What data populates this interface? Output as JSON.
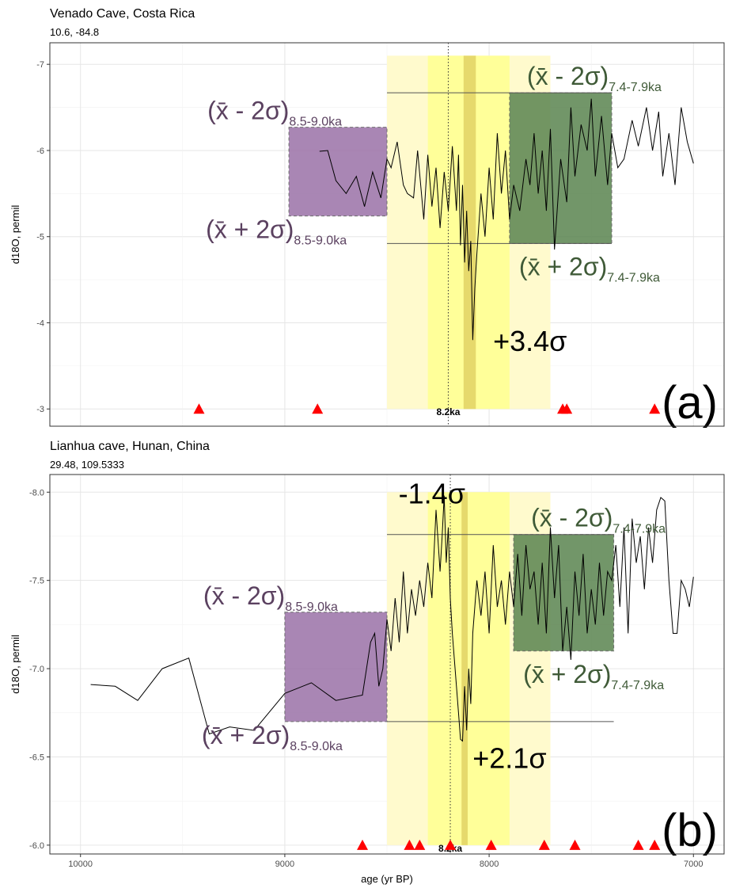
{
  "chart_data": [
    {
      "type": "line",
      "title": "Venado Cave, Costa Rica",
      "subtitle": "10.6, -84.8",
      "panel_label": "(a)",
      "xlabel": "age (yr BP)",
      "ylabel": "d18O, permil",
      "xlim": [
        10150,
        6850
      ],
      "ylim": [
        -2.8,
        -7.25
      ],
      "y_reversed": true,
      "yticks": [
        -7,
        -6,
        -5,
        -4,
        -3
      ],
      "ytick_labels": [
        "-7",
        "-6",
        "-5",
        "-4",
        "-3"
      ],
      "series": [
        {
          "name": "d18O",
          "x": [
            8830,
            8790,
            8750,
            8700,
            8650,
            8610,
            8570,
            8530,
            8500,
            8480,
            8450,
            8420,
            8400,
            8370,
            8350,
            8320,
            8300,
            8280,
            8260,
            8240,
            8220,
            8200,
            8180,
            8160,
            8150,
            8140,
            8130,
            8120,
            8110,
            8100,
            8090,
            8080,
            8070,
            8060,
            8040,
            8020,
            8000,
            7980,
            7960,
            7940,
            7920,
            7900,
            7880,
            7850,
            7820,
            7800,
            7780,
            7760,
            7740,
            7720,
            7700,
            7680,
            7650,
            7620,
            7600,
            7580,
            7550,
            7520,
            7500,
            7480,
            7450,
            7420,
            7400,
            7370,
            7340,
            7300,
            7270,
            7230,
            7200,
            7170,
            7150,
            7120,
            7090,
            7060,
            7030,
            7000
          ],
          "values": [
            -5.99,
            -6.0,
            -5.65,
            -5.5,
            -5.7,
            -5.35,
            -5.75,
            -5.45,
            -5.9,
            -5.8,
            -6.1,
            -5.6,
            -5.5,
            -5.45,
            -6.0,
            -5.2,
            -5.95,
            -5.35,
            -5.8,
            -5.1,
            -5.75,
            -5.3,
            -6.05,
            -5.3,
            -5.95,
            -4.9,
            -5.6,
            -4.7,
            -5.3,
            -4.6,
            -4.95,
            -3.8,
            -4.4,
            -4.8,
            -5.5,
            -5.0,
            -5.8,
            -5.2,
            -6.2,
            -5.5,
            -6.0,
            -5.2,
            -5.6,
            -5.3,
            -5.9,
            -5.6,
            -6.2,
            -5.5,
            -6.0,
            -5.3,
            -6.25,
            -4.85,
            -5.9,
            -5.4,
            -6.5,
            -5.7,
            -6.3,
            -6.0,
            -6.6,
            -5.7,
            -6.4,
            -5.6,
            -6.2,
            -5.8,
            -5.9,
            -6.35,
            -6.05,
            -6.5,
            -6.0,
            -6.45,
            -5.7,
            -6.2,
            -5.6,
            -6.5,
            -6.1,
            -5.85
          ]
        }
      ],
      "event_bands": [
        {
          "x_range": [
            8500,
            7700
          ],
          "color": "#fffacd"
        },
        {
          "x_range": [
            8300,
            7900
          ],
          "color": "#ffff99"
        },
        {
          "x_range": [
            8125,
            8065
          ],
          "color": "#e0d060"
        }
      ],
      "event_line": {
        "x": 8200,
        "label": "8.2ka"
      },
      "reference_boxes": [
        {
          "x_range": [
            8980,
            8500
          ],
          "y_range": [
            -5.24,
            -6.27
          ],
          "color": "#9b72a8",
          "label_upper": "(x̄ - 2σ)",
          "label_upper_sub": "8.5-9.0ka",
          "label_lower": "(x̄ + 2σ)",
          "label_lower_sub": "8.5-9.0ka"
        },
        {
          "x_range": [
            7900,
            7400
          ],
          "y_range": [
            -4.92,
            -6.67
          ],
          "color": "#5a8450",
          "label_upper": "(x̄ - 2σ)",
          "label_upper_sub": "7.4-7.9ka",
          "label_lower": "(x̄ + 2σ)",
          "label_lower_sub": "7.4-7.9ka"
        }
      ],
      "reference_lines": [
        {
          "y": -6.67,
          "x_range": [
            8500,
            7400
          ]
        },
        {
          "y": -4.92,
          "x_range": [
            8500,
            7400
          ]
        }
      ],
      "annotations": [
        {
          "text": "+3.4σ",
          "x": 7800,
          "y": -3.8
        }
      ],
      "triangle_markers_x": [
        9420,
        8840,
        7640,
        7620,
        7190
      ],
      "triangle_marker_y": -3.0
    },
    {
      "type": "line",
      "title": "Lianhua cave, Hunan, China",
      "subtitle": "29.48, 109.5333",
      "panel_label": "(b)",
      "xlabel": "age (yr BP)",
      "ylabel": "d18O, permil",
      "xlim": [
        10150,
        6850
      ],
      "ylim": [
        -5.95,
        -8.1
      ],
      "y_reversed": true,
      "yticks": [
        -8.0,
        -7.5,
        -7.0,
        -6.5,
        -6.0
      ],
      "ytick_labels": [
        "-8.0",
        "-7.5",
        "-7.0",
        "-6.5",
        "-6.0"
      ],
      "xticks": [
        10000,
        9000,
        8000,
        7000
      ],
      "xtick_labels": [
        "10000",
        "9000",
        "8000",
        "7000"
      ],
      "series": [
        {
          "name": "d18O",
          "x": [
            9950,
            9830,
            9720,
            9600,
            9470,
            9370,
            9270,
            9150,
            9000,
            8870,
            8750,
            8620,
            8580,
            8560,
            8540,
            8520,
            8500,
            8480,
            8460,
            8440,
            8420,
            8400,
            8380,
            8360,
            8340,
            8320,
            8300,
            8280,
            8260,
            8240,
            8230,
            8220,
            8210,
            8200,
            8190,
            8180,
            8170,
            8160,
            8150,
            8140,
            8130,
            8120,
            8110,
            8100,
            8090,
            8080,
            8060,
            8040,
            8020,
            8000,
            7980,
            7960,
            7940,
            7920,
            7900,
            7880,
            7860,
            7840,
            7820,
            7800,
            7780,
            7760,
            7740,
            7720,
            7700,
            7680,
            7660,
            7640,
            7620,
            7600,
            7580,
            7560,
            7540,
            7520,
            7500,
            7480,
            7460,
            7440,
            7420,
            7400,
            7380,
            7360,
            7340,
            7320,
            7300,
            7280,
            7260,
            7240,
            7220,
            7200,
            7180,
            7160,
            7140,
            7120,
            7100,
            7080,
            7060,
            7040,
            7020,
            7000
          ],
          "values": [
            -6.91,
            -6.9,
            -6.82,
            -7.0,
            -7.06,
            -6.63,
            -6.67,
            -6.65,
            -6.86,
            -6.92,
            -6.82,
            -6.85,
            -7.15,
            -7.2,
            -6.9,
            -7.0,
            -7.28,
            -7.1,
            -7.4,
            -7.15,
            -7.55,
            -7.2,
            -7.45,
            -7.3,
            -7.5,
            -7.35,
            -7.6,
            -7.4,
            -7.9,
            -7.55,
            -7.75,
            -7.98,
            -7.6,
            -7.8,
            -7.4,
            -7.2,
            -7.05,
            -6.9,
            -6.75,
            -6.6,
            -6.59,
            -6.9,
            -6.65,
            -7.0,
            -6.8,
            -7.2,
            -7.5,
            -7.3,
            -7.55,
            -7.2,
            -7.7,
            -7.35,
            -7.5,
            -7.25,
            -7.55,
            -7.35,
            -7.65,
            -7.3,
            -7.7,
            -7.45,
            -7.55,
            -7.25,
            -7.6,
            -7.2,
            -7.8,
            -7.4,
            -7.7,
            -7.1,
            -7.35,
            -7.05,
            -7.55,
            -7.3,
            -7.65,
            -7.2,
            -7.45,
            -7.25,
            -7.6,
            -7.3,
            -7.55,
            -7.5,
            -7.7,
            -7.35,
            -7.8,
            -7.2,
            -7.85,
            -7.6,
            -7.75,
            -7.45,
            -7.8,
            -7.6,
            -7.9,
            -7.97,
            -7.95,
            -7.5,
            -7.2,
            -7.2,
            -7.5,
            -7.45,
            -7.35,
            -7.52
          ]
        }
      ],
      "event_bands": [
        {
          "x_range": [
            8500,
            7700
          ],
          "color": "#fffacd"
        },
        {
          "x_range": [
            8300,
            7900
          ],
          "color": "#ffff99"
        },
        {
          "x_range": [
            8135,
            8105
          ],
          "color": "#e0d060"
        }
      ],
      "event_line": {
        "x": 8190,
        "label": "8.2ka"
      },
      "reference_boxes": [
        {
          "x_range": [
            9000,
            8500
          ],
          "y_range": [
            -6.7,
            -7.32
          ],
          "color": "#9b72a8",
          "label_upper": "(x̄ - 2σ)",
          "label_upper_sub": "8.5-9.0ka",
          "label_lower": "(x̄ + 2σ)",
          "label_lower_sub": "8.5-9.0ka"
        },
        {
          "x_range": [
            7880,
            7390
          ],
          "y_range": [
            -7.1,
            -7.76
          ],
          "color": "#5a8450",
          "label_upper": "(x̄ - 2σ)",
          "label_upper_sub": "7.4-7.9ka",
          "label_lower": "(x̄ + 2σ)",
          "label_lower_sub": "7.4-7.9ka"
        }
      ],
      "reference_lines": [
        {
          "y": -7.76,
          "x_range": [
            8500,
            7390
          ]
        },
        {
          "y": -6.7,
          "x_range": [
            8500,
            7390
          ]
        }
      ],
      "annotations": [
        {
          "text": "-1.4σ",
          "x": 8280,
          "y": -8.0
        },
        {
          "text": "+2.1σ",
          "x": 7900,
          "y": -6.5
        }
      ],
      "triangle_markers_x": [
        8620,
        8390,
        8340,
        8190,
        7990,
        7730,
        7580,
        7270,
        7190
      ],
      "triangle_marker_y": -6.0
    }
  ]
}
